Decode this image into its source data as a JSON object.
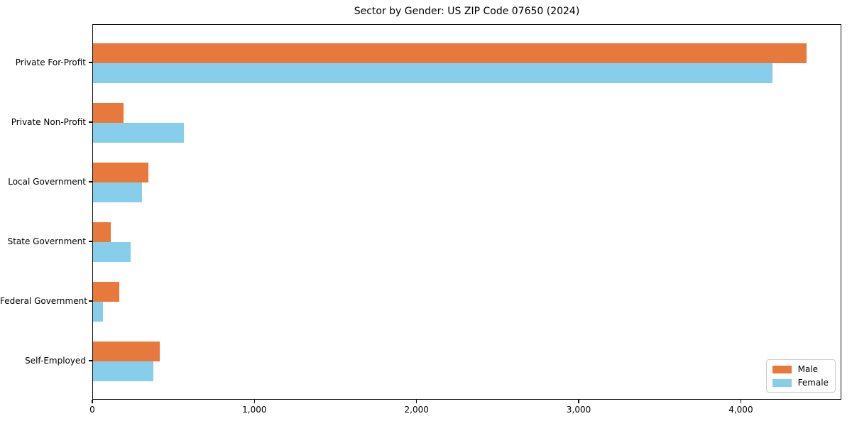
{
  "title": "Sector by Gender: US ZIP Code 07650 (2024)",
  "chart_data": {
    "type": "bar",
    "orientation": "horizontal",
    "title": "Sector by Gender: US ZIP Code 07650 (2024)",
    "categories": [
      "Private For-Profit",
      "Private Non-Profit",
      "Local Government",
      "State Government",
      "Federal Government",
      "Self-Employed"
    ],
    "series": [
      {
        "name": "Male",
        "color": "#e8793d",
        "values": [
          4400,
          190,
          340,
          110,
          160,
          410
        ]
      },
      {
        "name": "Female",
        "color": "#87ceeb",
        "values": [
          4190,
          560,
          300,
          230,
          60,
          370
        ]
      }
    ],
    "xlabel": "",
    "ylabel": "",
    "xlim": [
      0,
      4620
    ],
    "xticks": {
      "values": [
        0,
        1000,
        2000,
        3000,
        4000
      ],
      "labels": [
        "0",
        "1,000",
        "2,000",
        "3,000",
        "4,000"
      ]
    },
    "grid": false,
    "legend_position": "lower right",
    "background_color": "#ffffff",
    "axis_color": "#0f0f0f"
  }
}
